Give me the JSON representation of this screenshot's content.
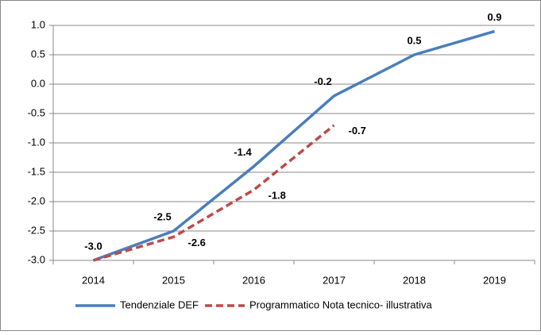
{
  "chart_data": {
    "type": "line",
    "categories": [
      "2014",
      "2015",
      "2016",
      "2017",
      "2018",
      "2019"
    ],
    "series": [
      {
        "name": "Tendenziale DEF",
        "color": "#4a7ebb",
        "dashed": false,
        "values": [
          -3.0,
          -2.5,
          -1.4,
          -0.2,
          0.5,
          0.9
        ],
        "value_labels": [
          "-3.0",
          "-2.5",
          "-1.4",
          "-0.2",
          "0.5",
          "0.9"
        ]
      },
      {
        "name": "Programmatico Nota tecnico- illustrativa",
        "color": "#be4b48",
        "dashed": true,
        "values": [
          -3.0,
          -2.6,
          -1.8,
          -0.7,
          null,
          null
        ],
        "value_labels": [
          null,
          "-2.6",
          "-1.8",
          "-0.7",
          null,
          null
        ]
      }
    ],
    "ylim": [
      -3.0,
      1.0
    ],
    "yticks": [
      {
        "value": -3.0,
        "label": "-3.0"
      },
      -2.5,
      {
        "value": -2.0,
        "label": "-2.0"
      },
      -1.5,
      {
        "value": -1.0,
        "label": "-1.0"
      },
      -0.5,
      {
        "value": 0.0,
        "label": "0.0"
      },
      0.5,
      {
        "value": 1.0,
        "label": "1.0"
      }
    ],
    "grid": true,
    "legend": "bottom"
  }
}
